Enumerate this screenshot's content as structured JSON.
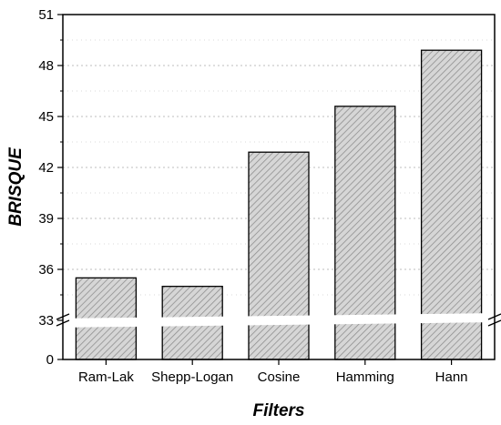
{
  "chart_data": {
    "type": "bar",
    "xlabel": "Filters",
    "ylabel": "BRISQUE",
    "categories": [
      "Ram-Lak",
      "Shepp-Logan",
      "Cosine",
      "Hamming",
      "Hann"
    ],
    "values": [
      35.5,
      35.0,
      42.9,
      45.6,
      48.9
    ],
    "y_ticks": [
      "0",
      "33",
      "36",
      "39",
      "42",
      "45",
      "48",
      "51"
    ],
    "ylim": [
      0,
      51
    ],
    "axis_break": [
      0,
      33
    ],
    "grid": true,
    "bar_pattern": "gray-hatched",
    "colors": {
      "bar_fill": "#cfcfcf",
      "bar_hatch": "#8a8a8a",
      "grid": "#bdbdbd"
    }
  }
}
